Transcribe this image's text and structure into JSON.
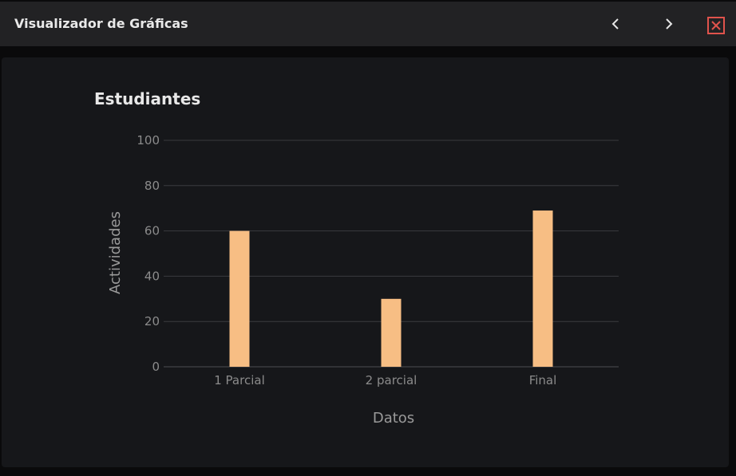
{
  "window": {
    "title": "Visualizador de Gráficas",
    "prev_icon": "chevron-left-icon",
    "next_icon": "chevron-right-icon",
    "close_icon": "close-icon",
    "close_color": "#e0534c"
  },
  "chart_data": {
    "type": "bar",
    "title": "Estudiantes",
    "xlabel": "Datos",
    "ylabel": "Actividades",
    "categories": [
      "1 Parcial",
      "2 parcial",
      "Final"
    ],
    "values": [
      60,
      30,
      69
    ],
    "ylim": [
      0,
      100
    ],
    "yticks": [
      "0",
      "20",
      "40",
      "60",
      "80",
      "100"
    ],
    "grid": true,
    "bar_color": "#f7be84",
    "grid_color": "#3a3b3f"
  }
}
